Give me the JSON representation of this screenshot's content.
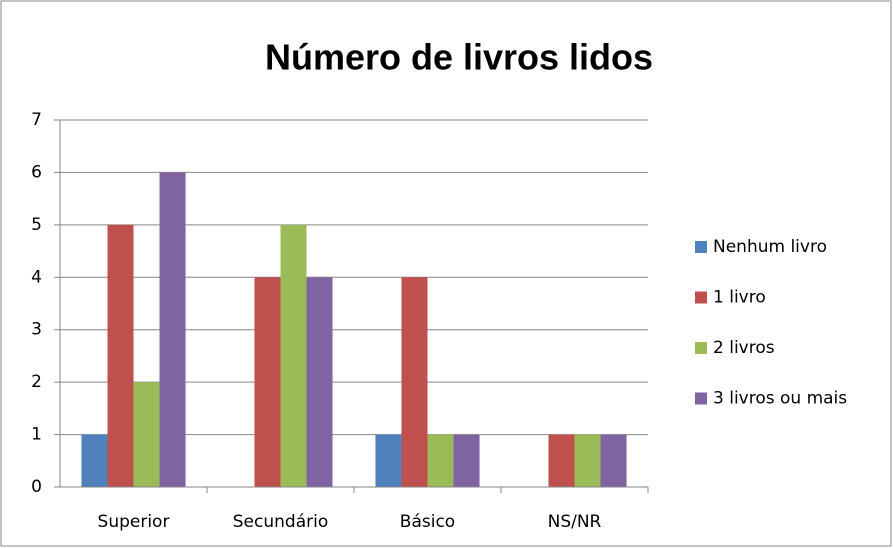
{
  "chart_data": {
    "type": "bar",
    "title": "Número de livros lidos",
    "categories": [
      "Superior",
      "Secundário",
      "Básico",
      "NS/NR"
    ],
    "series": [
      {
        "name": "Nenhum livro",
        "color": "#4f81bd",
        "values": [
          1,
          0,
          1,
          0
        ]
      },
      {
        "name": "1 livro",
        "color": "#c0504d",
        "values": [
          5,
          4,
          4,
          1
        ]
      },
      {
        "name": "2 livros",
        "color": "#9bbb59",
        "values": [
          2,
          5,
          1,
          1
        ]
      },
      {
        "name": "3 livros ou mais",
        "color": "#8064a2",
        "values": [
          6,
          4,
          1,
          1
        ]
      }
    ],
    "ylim": [
      0,
      7
    ],
    "yticks": [
      0,
      1,
      2,
      3,
      4,
      5,
      6,
      7
    ],
    "grid": true,
    "legend": "right"
  }
}
